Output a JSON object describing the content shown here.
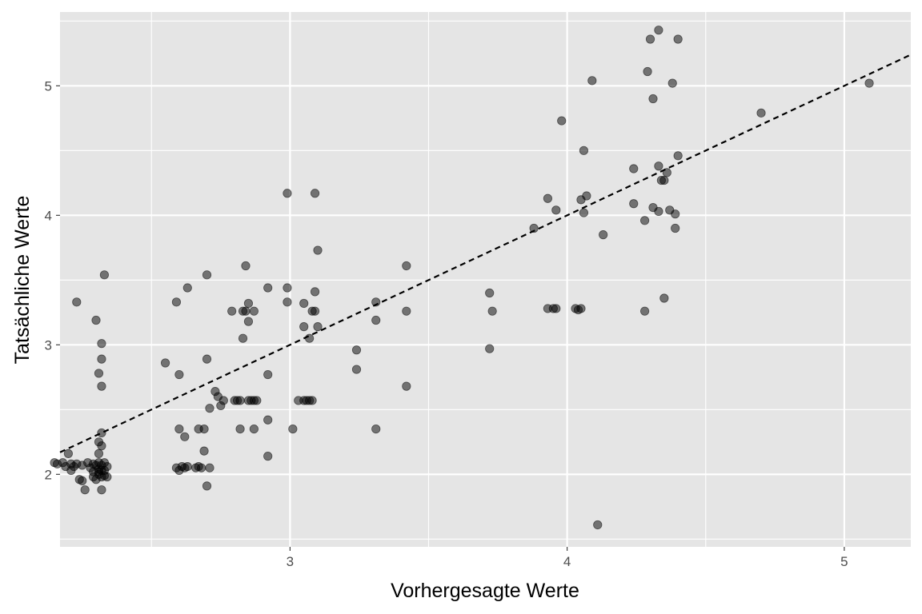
{
  "chart_data": {
    "type": "scatter",
    "title": "",
    "xlabel": "Vorhergesagte Werte",
    "ylabel": "Tatsächliche Werte",
    "xlim": [
      2.17,
      5.24
    ],
    "ylim": [
      1.44,
      5.57
    ],
    "x_ticks": [
      3,
      4,
      5
    ],
    "y_ticks": [
      2,
      3,
      4,
      5
    ],
    "x_minor_ticks": [
      2.5,
      3.5,
      4.5
    ],
    "y_minor_ticks": [
      1.5,
      2.5,
      3.5,
      4.5,
      5.5
    ],
    "grid": true,
    "legend": "none",
    "colors": {
      "panel_background": "#e5e5e5",
      "grid": "#ffffff",
      "point": "#000000",
      "point_opacity": 0.5,
      "reference_line": "#000000"
    },
    "reference_line": {
      "type": "identity",
      "style": "dashed",
      "slope": 1,
      "intercept": 0
    },
    "series": [
      {
        "points": [
          [
            2.15,
            2.09
          ],
          [
            2.16,
            2.08
          ],
          [
            2.18,
            2.09
          ],
          [
            2.19,
            2.06
          ],
          [
            2.2,
            2.16
          ],
          [
            2.21,
            2.08
          ],
          [
            2.21,
            2.03
          ],
          [
            2.22,
            2.06
          ],
          [
            2.23,
            3.33
          ],
          [
            2.23,
            2.08
          ],
          [
            2.24,
            1.96
          ],
          [
            2.25,
            1.95
          ],
          [
            2.25,
            2.07
          ],
          [
            2.26,
            1.88
          ],
          [
            2.27,
            2.09
          ],
          [
            2.28,
            2.05
          ],
          [
            2.29,
            2.08
          ],
          [
            2.29,
            2.02
          ],
          [
            2.29,
            1.98
          ],
          [
            2.3,
            3.19
          ],
          [
            2.3,
            1.96
          ],
          [
            2.3,
            2.07
          ],
          [
            2.31,
            2.09
          ],
          [
            2.31,
            2.0
          ],
          [
            2.31,
            2.78
          ],
          [
            2.31,
            2.25
          ],
          [
            2.31,
            2.16
          ],
          [
            2.31,
            2.04
          ],
          [
            2.31,
            2.02
          ],
          [
            2.32,
            3.01
          ],
          [
            2.32,
            2.89
          ],
          [
            2.32,
            2.68
          ],
          [
            2.32,
            2.32
          ],
          [
            2.32,
            2.22
          ],
          [
            2.32,
            2.07
          ],
          [
            2.32,
            2.03
          ],
          [
            2.32,
            1.98
          ],
          [
            2.32,
            1.88
          ],
          [
            2.33,
            3.54
          ],
          [
            2.33,
            2.09
          ],
          [
            2.33,
            2.03
          ],
          [
            2.33,
            1.99
          ],
          [
            2.34,
            2.06
          ],
          [
            2.34,
            1.98
          ],
          [
            2.55,
            2.86
          ],
          [
            2.59,
            3.33
          ],
          [
            2.59,
            2.05
          ],
          [
            2.6,
            2.77
          ],
          [
            2.6,
            2.35
          ],
          [
            2.6,
            2.03
          ],
          [
            2.61,
            2.06
          ],
          [
            2.62,
            2.29
          ],
          [
            2.62,
            2.05
          ],
          [
            2.63,
            3.44
          ],
          [
            2.63,
            2.06
          ],
          [
            2.66,
            2.05
          ],
          [
            2.67,
            2.35
          ],
          [
            2.67,
            2.06
          ],
          [
            2.68,
            2.05
          ],
          [
            2.69,
            2.18
          ],
          [
            2.69,
            2.35
          ],
          [
            2.7,
            3.54
          ],
          [
            2.7,
            2.89
          ],
          [
            2.7,
            1.91
          ],
          [
            2.71,
            2.05
          ],
          [
            2.71,
            2.51
          ],
          [
            2.73,
            2.64
          ],
          [
            2.74,
            2.6
          ],
          [
            2.75,
            2.53
          ],
          [
            2.76,
            2.57
          ],
          [
            2.79,
            3.26
          ],
          [
            2.8,
            2.57
          ],
          [
            2.81,
            2.57
          ],
          [
            2.82,
            2.57
          ],
          [
            2.82,
            2.35
          ],
          [
            2.83,
            3.05
          ],
          [
            2.83,
            3.26
          ],
          [
            2.84,
            3.61
          ],
          [
            2.84,
            3.26
          ],
          [
            2.85,
            3.32
          ],
          [
            2.85,
            3.18
          ],
          [
            2.85,
            2.57
          ],
          [
            2.86,
            2.57
          ],
          [
            2.87,
            3.26
          ],
          [
            2.87,
            2.57
          ],
          [
            2.87,
            2.35
          ],
          [
            2.88,
            2.57
          ],
          [
            2.92,
            3.44
          ],
          [
            2.92,
            2.77
          ],
          [
            2.92,
            2.42
          ],
          [
            2.92,
            2.14
          ],
          [
            2.99,
            4.17
          ],
          [
            2.99,
            3.44
          ],
          [
            2.99,
            3.33
          ],
          [
            3.01,
            2.35
          ],
          [
            3.03,
            2.57
          ],
          [
            3.05,
            3.32
          ],
          [
            3.05,
            3.14
          ],
          [
            3.05,
            2.57
          ],
          [
            3.06,
            2.57
          ],
          [
            3.07,
            2.57
          ],
          [
            3.07,
            3.05
          ],
          [
            3.08,
            3.26
          ],
          [
            3.08,
            2.57
          ],
          [
            3.09,
            4.17
          ],
          [
            3.09,
            3.41
          ],
          [
            3.09,
            3.26
          ],
          [
            3.1,
            3.73
          ],
          [
            3.1,
            3.14
          ],
          [
            3.24,
            2.96
          ],
          [
            3.24,
            2.81
          ],
          [
            3.31,
            3.33
          ],
          [
            3.31,
            3.19
          ],
          [
            3.31,
            2.35
          ],
          [
            3.42,
            3.61
          ],
          [
            3.42,
            3.26
          ],
          [
            3.42,
            2.68
          ],
          [
            3.72,
            3.4
          ],
          [
            3.72,
            2.97
          ],
          [
            3.73,
            3.26
          ],
          [
            3.88,
            3.9
          ],
          [
            3.93,
            4.13
          ],
          [
            3.93,
            3.28
          ],
          [
            3.95,
            3.28
          ],
          [
            3.96,
            4.04
          ],
          [
            3.96,
            3.28
          ],
          [
            3.98,
            4.73
          ],
          [
            4.03,
            3.28
          ],
          [
            4.04,
            3.27
          ],
          [
            4.05,
            4.12
          ],
          [
            4.05,
            3.28
          ],
          [
            4.06,
            4.5
          ],
          [
            4.06,
            4.02
          ],
          [
            4.07,
            4.15
          ],
          [
            4.09,
            5.04
          ],
          [
            4.11,
            1.61
          ],
          [
            4.13,
            3.85
          ],
          [
            4.24,
            4.36
          ],
          [
            4.24,
            4.09
          ],
          [
            4.28,
            3.96
          ],
          [
            4.28,
            3.26
          ],
          [
            4.29,
            5.11
          ],
          [
            4.3,
            5.36
          ],
          [
            4.31,
            4.06
          ],
          [
            4.31,
            4.9
          ],
          [
            4.33,
            5.43
          ],
          [
            4.33,
            4.38
          ],
          [
            4.33,
            4.03
          ],
          [
            4.34,
            4.27
          ],
          [
            4.35,
            4.27
          ],
          [
            4.35,
            3.36
          ],
          [
            4.36,
            4.33
          ],
          [
            4.37,
            4.04
          ],
          [
            4.38,
            5.02
          ],
          [
            4.39,
            4.01
          ],
          [
            4.39,
            3.9
          ],
          [
            4.4,
            5.36
          ],
          [
            4.4,
            4.46
          ],
          [
            4.7,
            4.79
          ],
          [
            5.09,
            5.02
          ]
        ]
      }
    ]
  }
}
